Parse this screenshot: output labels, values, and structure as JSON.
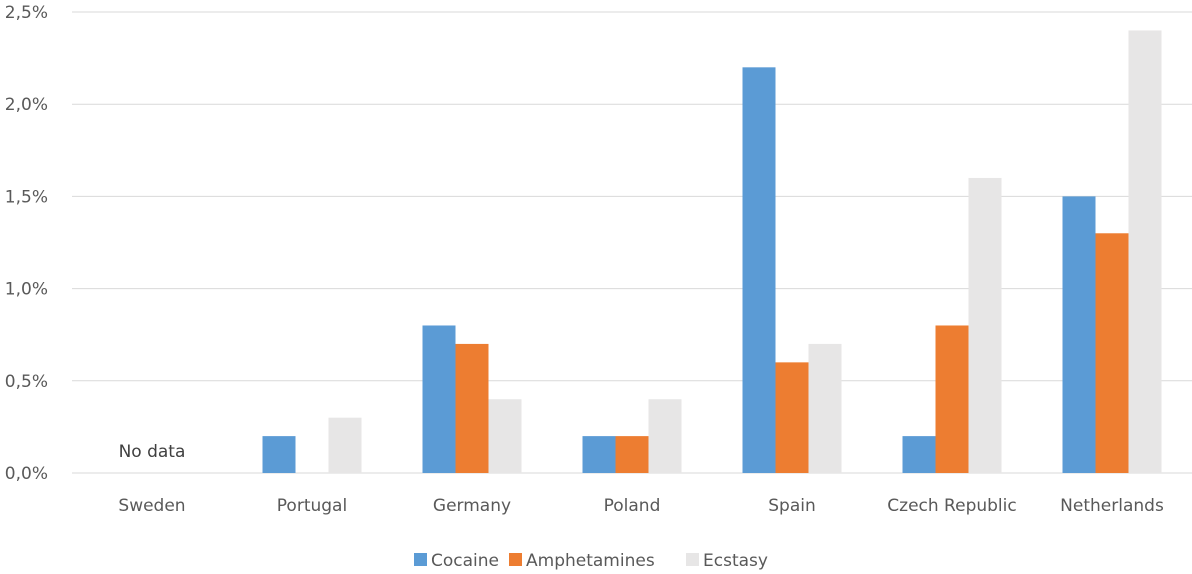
{
  "chart_data": {
    "type": "bar",
    "categories": [
      "Sweden",
      "Portugal",
      "Germany",
      "Poland",
      "Spain",
      "Czech Republic",
      "Netherlands"
    ],
    "series": [
      {
        "name": "Cocaine",
        "color": "#5b9bd5",
        "values": [
          null,
          0.2,
          0.8,
          0.2,
          2.2,
          0.2,
          1.5
        ]
      },
      {
        "name": "Amphetamines",
        "color": "#ed7d31",
        "values": [
          null,
          0.0,
          0.7,
          0.2,
          0.6,
          0.8,
          1.3
        ]
      },
      {
        "name": "Ecstasy",
        "color": "#e7e6e6",
        "values": [
          null,
          0.3,
          0.4,
          0.4,
          0.7,
          1.6,
          2.4
        ]
      }
    ],
    "ylim": [
      0,
      2.5
    ],
    "y_ticks": [
      0,
      0.5,
      1.0,
      1.5,
      2.0,
      2.5
    ],
    "y_tick_labels": [
      "0,0%",
      "0,5%",
      "1,0%",
      "1,5%",
      "2,0%",
      "2,5%"
    ],
    "grid": true,
    "legend_position": "bottom",
    "annotations": [
      {
        "category": "Sweden",
        "text": "No data"
      }
    ]
  }
}
